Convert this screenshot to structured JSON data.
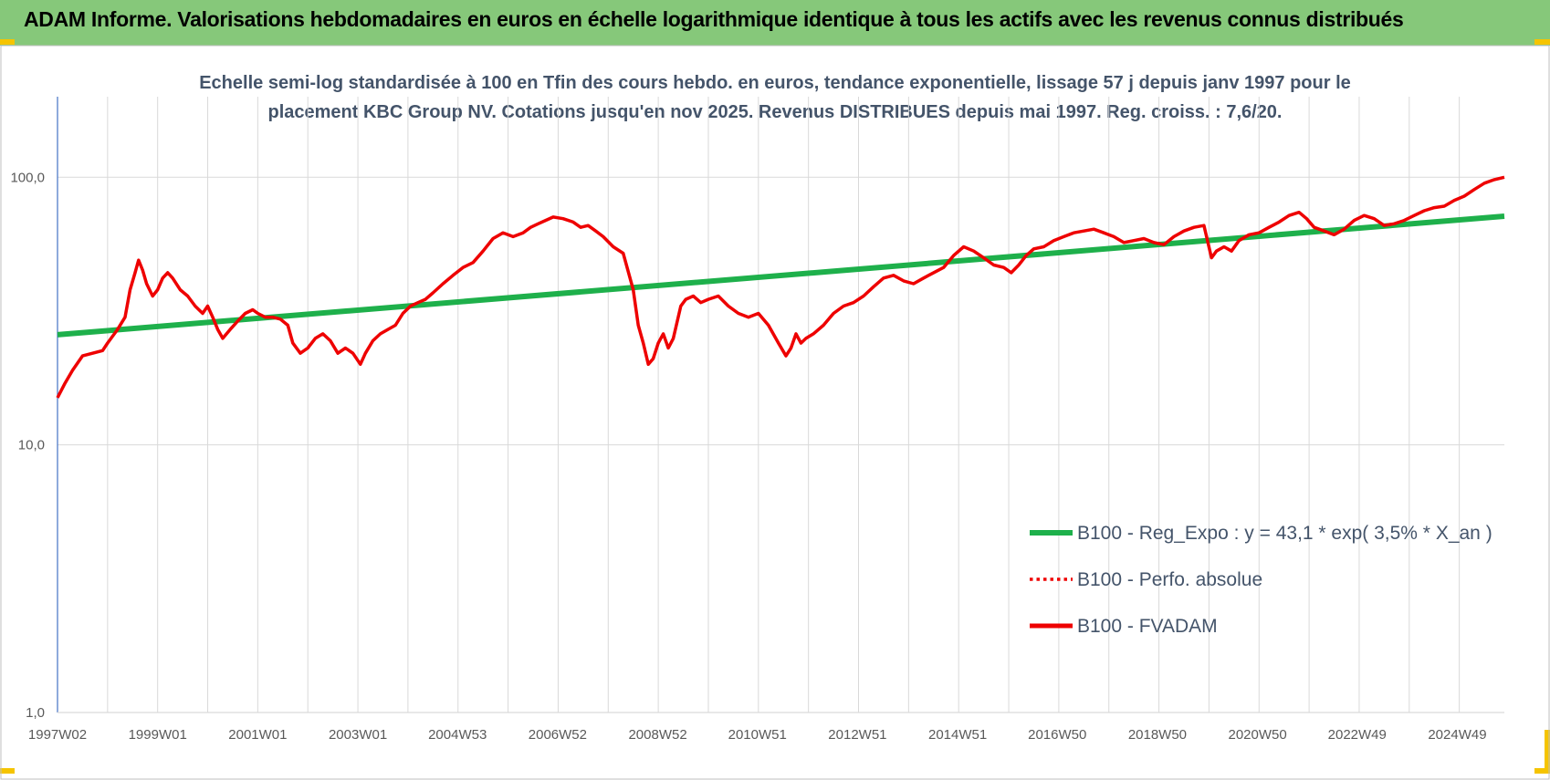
{
  "banner": {
    "title": "ADAM Informe. Valorisations hebdomadaires en euros en échelle logarithmique identique à tous les actifs avec les revenus connus distribués"
  },
  "colors": {
    "banner": "#86c87a",
    "trend": "#1eb04b",
    "series": "#ee0000",
    "grid": "#d9d9d9",
    "axis": "#4472c4",
    "text": "#44546a",
    "accent": "#f5c400"
  },
  "chart_data": {
    "type": "line",
    "title_lines": [
      "Echelle semi-log standardisée à 100 en Tfin des cours hebdo. en euros, tendance exponentielle, lissage 57 j depuis janv 1997 pour le",
      "placement KBC Group NV. Cotations jusqu'en nov 2025. Revenus DISTRIBUES depuis mai 1997. Reg. croiss. : 7,6/20."
    ],
    "y_scale": "log",
    "ylim": [
      1,
      200
    ],
    "y_ticks": [
      {
        "value": 1,
        "label": "1,0"
      },
      {
        "value": 10,
        "label": "10,0"
      },
      {
        "value": 100,
        "label": "100,0"
      }
    ],
    "xlim": [
      1997.0,
      2025.9
    ],
    "x_ticks": [
      {
        "value": 1997.0,
        "label": "1997W02"
      },
      {
        "value": 1999.0,
        "label": "1999W01"
      },
      {
        "value": 2001.0,
        "label": "2001W01"
      },
      {
        "value": 2003.0,
        "label": "2003W01"
      },
      {
        "value": 2004.99,
        "label": "2004W53"
      },
      {
        "value": 2006.99,
        "label": "2006W52"
      },
      {
        "value": 2008.99,
        "label": "2008W52"
      },
      {
        "value": 2010.98,
        "label": "2010W51"
      },
      {
        "value": 2012.98,
        "label": "2012W51"
      },
      {
        "value": 2014.98,
        "label": "2014W51"
      },
      {
        "value": 2016.97,
        "label": "2016W50"
      },
      {
        "value": 2018.97,
        "label": "2018W50"
      },
      {
        "value": 2020.97,
        "label": "2020W50"
      },
      {
        "value": 2022.96,
        "label": "2022W49"
      },
      {
        "value": 2024.96,
        "label": "2024W49"
      }
    ],
    "grid": true,
    "legend_position": "bottom-right",
    "series": [
      {
        "name": "B100 - Reg_Expo : y = 43,1 * exp( 3,5% *  X_an )",
        "style": "solid-thick",
        "color": "#1eb04b",
        "x": [
          1997.0,
          2025.9
        ],
        "y": [
          25.8,
          71.5
        ]
      },
      {
        "name": "B100 - Perfo. absolue",
        "style": "dotted",
        "color": "#ee0000",
        "x": [],
        "y": []
      },
      {
        "name": "B100 - FVADAM",
        "style": "solid",
        "color": "#ee0000",
        "x": [
          1997.0,
          1997.15,
          1997.3,
          1997.5,
          1997.7,
          1997.9,
          1998.0,
          1998.2,
          1998.35,
          1998.45,
          1998.55,
          1998.62,
          1998.7,
          1998.78,
          1998.9,
          1999.0,
          1999.1,
          1999.2,
          1999.3,
          1999.45,
          1999.6,
          1999.75,
          1999.9,
          2000.0,
          2000.1,
          2000.2,
          2000.3,
          2000.45,
          2000.6,
          2000.75,
          2000.9,
          2001.0,
          2001.15,
          2001.3,
          2001.45,
          2001.6,
          2001.7,
          2001.85,
          2002.0,
          2002.15,
          2002.3,
          2002.45,
          2002.6,
          2002.75,
          2002.9,
          2003.05,
          2003.15,
          2003.3,
          2003.45,
          2003.6,
          2003.75,
          2003.9,
          2004.05,
          2004.2,
          2004.35,
          2004.5,
          2004.7,
          2004.9,
          2005.1,
          2005.3,
          2005.5,
          2005.7,
          2005.9,
          2006.1,
          2006.3,
          2006.45,
          2006.6,
          2006.75,
          2006.9,
          2007.1,
          2007.3,
          2007.45,
          2007.6,
          2007.75,
          2007.9,
          2008.1,
          2008.3,
          2008.5,
          2008.6,
          2008.7,
          2008.8,
          2008.9,
          2009.0,
          2009.1,
          2009.2,
          2009.3,
          2009.45,
          2009.55,
          2009.7,
          2009.85,
          2010.0,
          2010.2,
          2010.4,
          2010.6,
          2010.8,
          2011.0,
          2011.2,
          2011.4,
          2011.55,
          2011.65,
          2011.75,
          2011.85,
          2011.95,
          2012.1,
          2012.3,
          2012.5,
          2012.7,
          2012.9,
          2013.1,
          2013.3,
          2013.5,
          2013.7,
          2013.9,
          2014.1,
          2014.3,
          2014.5,
          2014.7,
          2014.9,
          2015.1,
          2015.3,
          2015.5,
          2015.7,
          2015.9,
          2016.05,
          2016.2,
          2016.35,
          2016.5,
          2016.7,
          2016.9,
          2017.1,
          2017.3,
          2017.5,
          2017.7,
          2017.9,
          2018.1,
          2018.3,
          2018.5,
          2018.7,
          2018.9,
          2019.1,
          2019.3,
          2019.5,
          2019.7,
          2019.9,
          2020.05,
          2020.15,
          2020.3,
          2020.45,
          2020.6,
          2020.8,
          2021.0,
          2021.2,
          2021.4,
          2021.6,
          2021.8,
          2021.95,
          2022.1,
          2022.3,
          2022.5,
          2022.7,
          2022.9,
          2023.1,
          2023.3,
          2023.5,
          2023.7,
          2023.9,
          2024.1,
          2024.3,
          2024.5,
          2024.7,
          2024.9,
          2025.1,
          2025.3,
          2025.5,
          2025.7,
          2025.9
        ],
        "y": [
          15.0,
          17.0,
          19.0,
          21.5,
          22.0,
          22.5,
          24.0,
          27.0,
          30.0,
          38.0,
          44.0,
          49.0,
          45.0,
          40.0,
          36.0,
          38.0,
          42.0,
          44.0,
          42.0,
          38.0,
          36.0,
          33.0,
          31.0,
          33.0,
          30.0,
          27.0,
          25.0,
          27.0,
          29.0,
          31.0,
          32.0,
          31.0,
          30.0,
          30.0,
          29.5,
          28.0,
          24.0,
          22.0,
          23.0,
          25.0,
          26.0,
          24.5,
          22.0,
          23.0,
          22.0,
          20.0,
          22.0,
          24.5,
          26.0,
          27.0,
          28.0,
          31.0,
          33.0,
          34.0,
          35.0,
          37.0,
          40.0,
          43.0,
          46.0,
          48.0,
          53.0,
          59.0,
          62.0,
          60.0,
          62.0,
          65.0,
          67.0,
          69.0,
          71.0,
          70.0,
          68.0,
          65.0,
          66.0,
          63.0,
          60.0,
          55.0,
          52.0,
          38.0,
          28.0,
          24.0,
          20.0,
          21.0,
          24.0,
          26.0,
          23.0,
          25.0,
          33.0,
          35.0,
          36.0,
          34.0,
          35.0,
          36.0,
          33.0,
          31.0,
          30.0,
          31.0,
          28.0,
          24.0,
          21.5,
          23.0,
          26.0,
          24.0,
          25.0,
          26.0,
          28.0,
          31.0,
          33.0,
          34.0,
          36.0,
          39.0,
          42.0,
          43.0,
          41.0,
          40.0,
          42.0,
          44.0,
          46.0,
          51.0,
          55.0,
          53.0,
          50.0,
          47.0,
          46.0,
          44.0,
          47.0,
          51.0,
          54.0,
          55.0,
          58.0,
          60.0,
          62.0,
          63.0,
          64.0,
          62.0,
          60.0,
          57.0,
          58.0,
          59.0,
          57.0,
          56.0,
          60.0,
          63.0,
          65.0,
          66.0,
          50.0,
          53.0,
          55.0,
          53.0,
          58.0,
          61.0,
          62.0,
          65.0,
          68.0,
          72.0,
          74.0,
          70.0,
          65.0,
          63.0,
          61.0,
          64.0,
          69.0,
          72.0,
          70.0,
          66.0,
          67.0,
          69.0,
          72.0,
          75.0,
          77.0,
          78.0,
          82.0,
          85.0,
          90.0,
          95.0,
          98.0,
          100.0
        ]
      }
    ]
  }
}
